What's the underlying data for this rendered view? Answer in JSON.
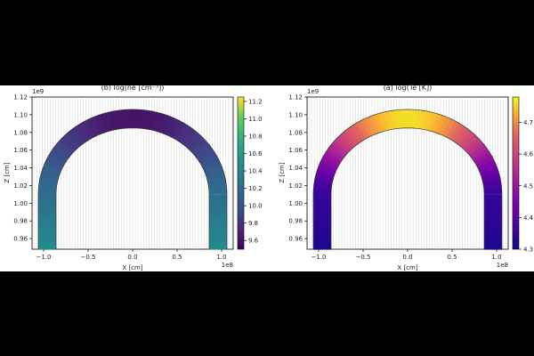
{
  "chart_data": [
    {
      "type": "heatmap",
      "title": "(b) log(ne [cm⁻³])",
      "xlabel": "X [cm]",
      "ylabel": "Z [cm]",
      "x_multiplier": "1e8",
      "y_multiplier": "1e9",
      "xlim": [
        -1.13,
        1.13
      ],
      "ylim": [
        0.948,
        1.12
      ],
      "x_ticks": [
        -1.0,
        -0.5,
        0.0,
        0.5,
        1.0
      ],
      "x_tick_labels": [
        "−1.0",
        "−0.5",
        "0.0",
        "0.5",
        "1.0"
      ],
      "y_ticks": [
        0.96,
        0.98,
        1.0,
        1.02,
        1.04,
        1.06,
        1.08,
        1.1,
        1.12
      ],
      "y_tick_labels": [
        "0.96",
        "0.98",
        "1.00",
        "1.02",
        "1.04",
        "1.06",
        "1.08",
        "1.10",
        "1.12"
      ],
      "colorbar": {
        "colormap": "viridis",
        "min": 9.5,
        "max": 11.25,
        "ticks": [
          9.6,
          9.8,
          10.0,
          10.2,
          10.4,
          10.6,
          10.8,
          11.0,
          11.2
        ],
        "tick_labels": [
          "9.6",
          "9.8",
          "10.0",
          "10.2",
          "10.4",
          "10.6",
          "10.8",
          "11.0",
          "11.2"
        ]
      },
      "loop": {
        "inner_radius": 0.86,
        "outer_radius": 1.06,
        "apex_inner": 1.085,
        "apex_outer": 1.106,
        "base_z": 0.948,
        "leg_top_z": 1.01
      },
      "profile": {
        "leg_base_value": 10.45,
        "leg_top_value": 10.2,
        "apex_value": 9.6
      },
      "grid": true
    },
    {
      "type": "heatmap",
      "title": "(a) log(Te [K])",
      "xlabel": "X [cm]",
      "ylabel": "Z [cm]",
      "x_multiplier": "1e8",
      "y_multiplier": "1e9",
      "xlim": [
        -1.13,
        1.13
      ],
      "ylim": [
        0.948,
        1.12
      ],
      "x_ticks": [
        -1.0,
        -0.5,
        0.0,
        0.5,
        1.0
      ],
      "x_tick_labels": [
        "−1.0",
        "−0.5",
        "0.0",
        "0.5",
        "1.0"
      ],
      "y_ticks": [
        0.96,
        0.98,
        1.0,
        1.02,
        1.04,
        1.06,
        1.08,
        1.1,
        1.12
      ],
      "y_tick_labels": [
        "0.96",
        "0.98",
        "1.00",
        "1.02",
        "1.04",
        "1.06",
        "1.08",
        "1.10",
        "1.12"
      ],
      "colorbar": {
        "colormap": "plasma",
        "min": 4.3,
        "max": 4.78,
        "ticks": [
          4.3,
          4.4,
          4.5,
          4.6,
          4.7
        ],
        "tick_labels": [
          "4.3",
          "4.4",
          "4.5",
          "4.6",
          "4.7"
        ]
      },
      "loop": {
        "inner_radius": 0.86,
        "outer_radius": 1.06,
        "apex_inner": 1.085,
        "apex_outer": 1.106,
        "base_z": 0.948,
        "leg_top_z": 1.01
      },
      "profile": {
        "leg_base_value": 4.32,
        "leg_top_value": 4.35,
        "apex_value": 4.76
      },
      "grid": true
    }
  ]
}
